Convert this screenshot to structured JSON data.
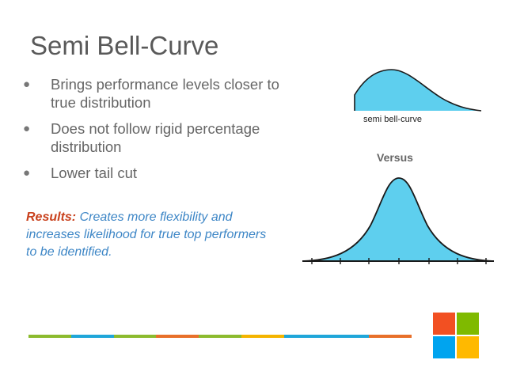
{
  "slide": {
    "title": "Semi Bell-Curve",
    "bullets": [
      "Brings performance levels closer to true distribution",
      "Does not follow rigid percentage distribution",
      "Lower tail cut"
    ],
    "bullet_glyph": "●",
    "results_label": "Results:",
    "results_text": " Creates more flexibility and increases likelihood for true top performers to be identified.",
    "semi_caption": "semi bell-curve",
    "versus": "Versus"
  },
  "colors": {
    "title": "#595959",
    "body_text": "#666666",
    "results_label": "#c9421e",
    "results_text": "#3d86c6",
    "curve_fill": "#5ecfee",
    "bar_segments": [
      "#8cbb2e",
      "#1fa6d9",
      "#8cbb2e",
      "#e8702a",
      "#8cbb2e",
      "#f4b400",
      "#1fa6d9",
      "#1fa6d9",
      "#e8702a"
    ],
    "logo": [
      "#f25022",
      "#7fba00",
      "#00a4ef",
      "#ffb900"
    ]
  },
  "icons": [
    "bullet-dot-icon",
    "windows-logo-icon"
  ]
}
